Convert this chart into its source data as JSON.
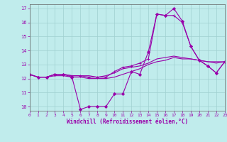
{
  "xlabel": "Windchill (Refroidissement éolien,°C)",
  "background_color": "#c0ecec",
  "line_color": "#9900aa",
  "grid_color": "#a0d0d0",
  "xlim": [
    0,
    23
  ],
  "ylim": [
    9.7,
    17.3
  ],
  "xticks": [
    0,
    1,
    2,
    3,
    4,
    5,
    6,
    7,
    8,
    9,
    10,
    11,
    12,
    13,
    14,
    15,
    16,
    17,
    18,
    19,
    20,
    21,
    22,
    23
  ],
  "yticks": [
    10,
    11,
    12,
    13,
    14,
    15,
    16,
    17
  ],
  "series": [
    {
      "y": [
        12.3,
        12.1,
        12.1,
        12.3,
        12.3,
        12.1,
        9.8,
        10.0,
        10.0,
        10.0,
        10.9,
        10.9,
        12.5,
        12.3,
        13.9,
        16.6,
        16.5,
        17.0,
        16.1,
        14.3,
        13.3,
        12.9,
        12.4,
        13.2
      ],
      "marker": "D",
      "markersize": 2.0,
      "lw": 0.8
    },
    {
      "y": [
        12.3,
        12.1,
        12.1,
        12.3,
        12.3,
        12.2,
        12.2,
        12.1,
        12.1,
        12.1,
        12.5,
        12.8,
        12.9,
        13.1,
        13.4,
        16.6,
        16.5,
        16.5,
        16.0,
        14.3,
        13.3,
        12.9,
        12.4,
        13.2
      ],
      "marker": "+",
      "markersize": 3.0,
      "lw": 0.8
    },
    {
      "y": [
        12.3,
        12.1,
        12.1,
        12.3,
        12.3,
        12.2,
        12.2,
        12.2,
        12.1,
        12.2,
        12.4,
        12.7,
        12.8,
        12.9,
        13.1,
        13.4,
        13.5,
        13.6,
        13.5,
        13.4,
        13.3,
        13.2,
        13.2,
        13.2
      ],
      "marker": null,
      "markersize": 0,
      "lw": 0.8
    },
    {
      "y": [
        12.3,
        12.1,
        12.1,
        12.2,
        12.2,
        12.1,
        12.1,
        12.0,
        12.0,
        12.0,
        12.1,
        12.3,
        12.5,
        12.7,
        13.0,
        13.2,
        13.3,
        13.5,
        13.4,
        13.4,
        13.3,
        13.2,
        13.1,
        13.2
      ],
      "marker": null,
      "markersize": 0,
      "lw": 0.8
    }
  ]
}
